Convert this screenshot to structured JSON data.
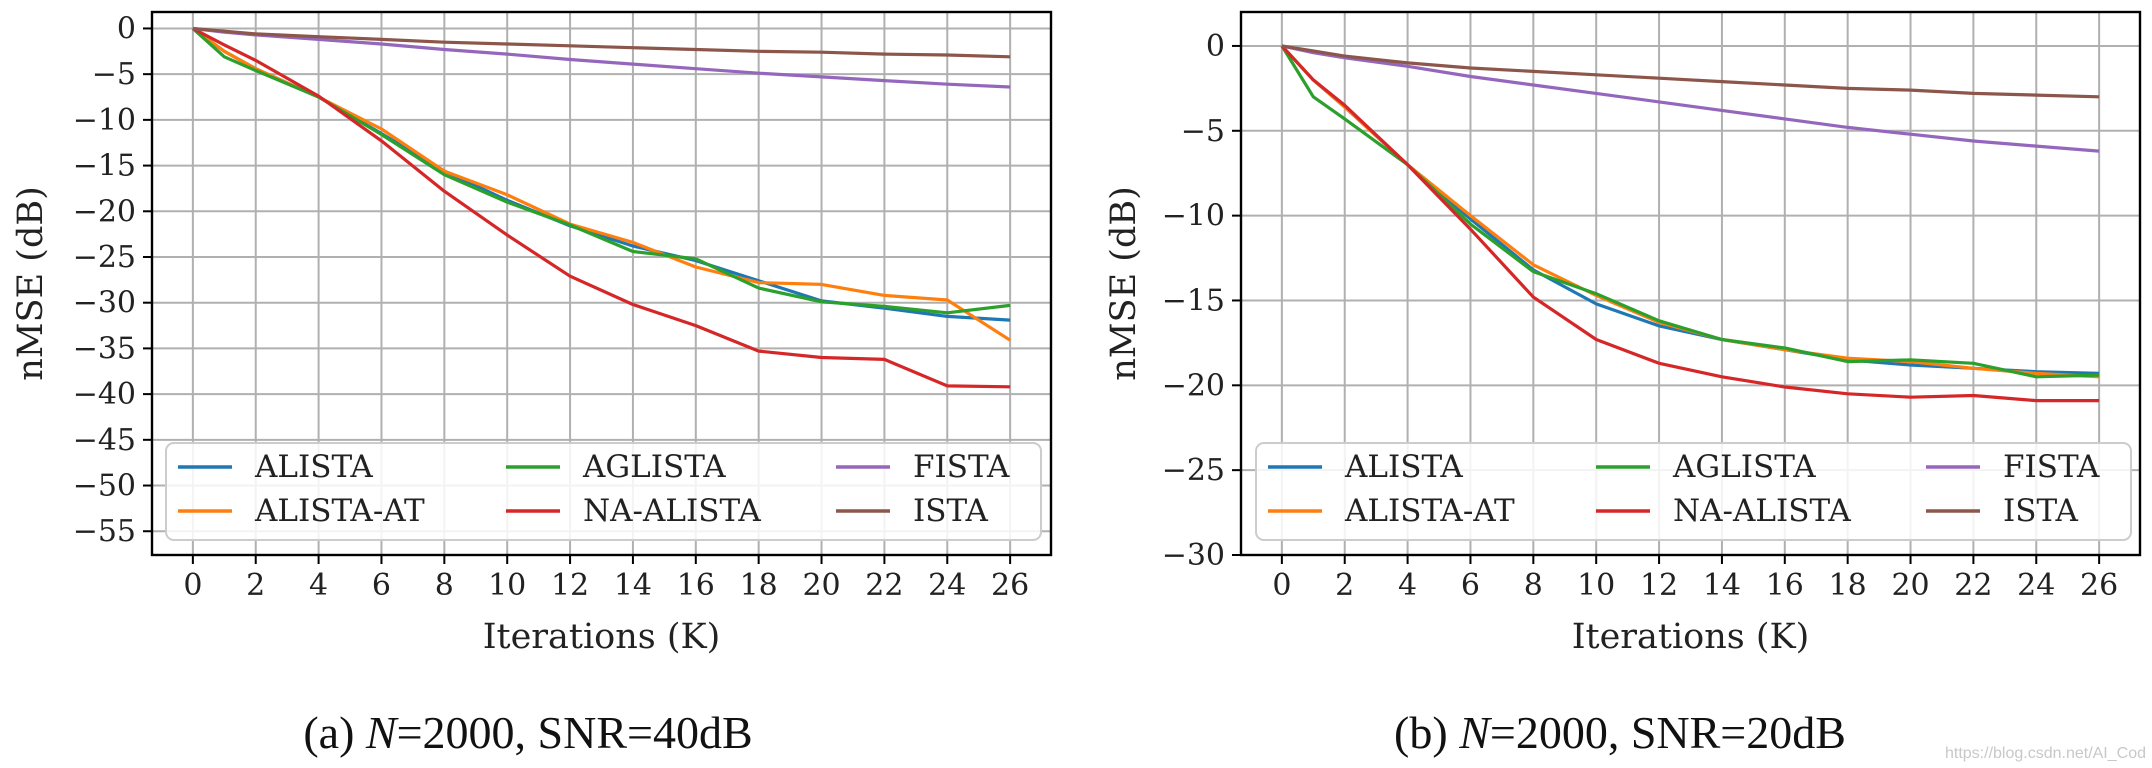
{
  "chart_data": [
    {
      "type": "line",
      "caption_prefix": "(a) ",
      "caption_var": "N",
      "caption_rest": "=2000, SNR=40dB",
      "xlabel": "Iterations (K)",
      "ylabel": "nMSE (dB)",
      "xlim": [
        -1.3,
        27.3
      ],
      "ylim": [
        -57.6,
        1.8
      ],
      "xticks": [
        0,
        2,
        4,
        6,
        8,
        10,
        12,
        14,
        16,
        18,
        20,
        22,
        24,
        26
      ],
      "yticks": [
        0,
        -5,
        -10,
        -15,
        -20,
        -25,
        -30,
        -35,
        -40,
        -45,
        -50,
        -55
      ],
      "grid": true,
      "legend": {
        "position": "lower-center",
        "columns": 3
      },
      "x": [
        0,
        1,
        2,
        4,
        6,
        8,
        10,
        12,
        14,
        16,
        18,
        20,
        22,
        24,
        26
      ],
      "series": [
        {
          "name": "ALISTA",
          "color": "#1f77b4",
          "values": [
            0,
            -2.5,
            -4.4,
            -7.5,
            -11.5,
            -15.6,
            -18.8,
            -21.6,
            -23.8,
            -25.4,
            -27.6,
            -29.8,
            -30.6,
            -31.5,
            -31.9
          ]
        },
        {
          "name": "ALISTA-AT",
          "color": "#ff7f0e",
          "values": [
            0,
            -2.5,
            -4.4,
            -7.5,
            -11.0,
            -15.6,
            -18.2,
            -21.4,
            -23.4,
            -26.1,
            -27.8,
            -28.0,
            -29.2,
            -29.7,
            -34.1
          ]
        },
        {
          "name": "AGLISTA",
          "color": "#2ca02c",
          "values": [
            0,
            -3.1,
            -4.6,
            -7.5,
            -11.6,
            -16.0,
            -19.0,
            -21.5,
            -24.4,
            -25.2,
            -28.4,
            -29.9,
            -30.4,
            -31.1,
            -30.3
          ]
        },
        {
          "name": "NA-ALISTA",
          "color": "#d62728",
          "values": [
            0,
            -1.8,
            -3.5,
            -7.4,
            -12.3,
            -17.8,
            -22.6,
            -27.1,
            -30.2,
            -32.5,
            -35.3,
            -36.0,
            -36.2,
            -39.1,
            -39.2
          ]
        },
        {
          "name": "FISTA",
          "color": "#9467bd",
          "values": [
            0,
            -0.4,
            -0.7,
            -1.2,
            -1.7,
            -2.3,
            -2.8,
            -3.4,
            -3.9,
            -4.4,
            -4.9,
            -5.3,
            -5.7,
            -6.1,
            -6.4
          ]
        },
        {
          "name": "ISTA",
          "color": "#8c564b",
          "values": [
            0,
            -0.3,
            -0.6,
            -0.9,
            -1.2,
            -1.5,
            -1.7,
            -1.9,
            -2.1,
            -2.3,
            -2.5,
            -2.6,
            -2.8,
            -2.9,
            -3.1
          ]
        }
      ]
    },
    {
      "type": "line",
      "caption_prefix": "(b) ",
      "caption_var": "N",
      "caption_rest": "=2000, SNR=20dB",
      "xlabel": "Iterations (K)",
      "ylabel": "nMSE (dB)",
      "xlim": [
        -1.3,
        27.3
      ],
      "ylim": [
        -30,
        2
      ],
      "xticks": [
        0,
        2,
        4,
        6,
        8,
        10,
        12,
        14,
        16,
        18,
        20,
        22,
        24,
        26
      ],
      "yticks": [
        0,
        -5,
        -10,
        -15,
        -20,
        -25,
        -30
      ],
      "grid": true,
      "legend": {
        "position": "lower-center",
        "columns": 3
      },
      "x": [
        0,
        1,
        2,
        4,
        6,
        8,
        10,
        12,
        14,
        16,
        18,
        20,
        22,
        24,
        26
      ],
      "series": [
        {
          "name": "ALISTA",
          "color": "#1f77b4",
          "values": [
            0,
            -2.0,
            -3.6,
            -7.0,
            -10.2,
            -13.2,
            -15.2,
            -16.5,
            -17.3,
            -17.9,
            -18.5,
            -18.8,
            -19.0,
            -19.2,
            -19.3
          ]
        },
        {
          "name": "ALISTA-AT",
          "color": "#ff7f0e",
          "values": [
            0,
            -2.0,
            -3.6,
            -7.0,
            -10.0,
            -12.9,
            -14.7,
            -16.3,
            -17.3,
            -17.9,
            -18.4,
            -18.6,
            -19.0,
            -19.3,
            -19.5
          ]
        },
        {
          "name": "AGLISTA",
          "color": "#2ca02c",
          "values": [
            0,
            -3.0,
            -4.3,
            -7.0,
            -10.5,
            -13.3,
            -14.6,
            -16.2,
            -17.3,
            -17.8,
            -18.6,
            -18.5,
            -18.7,
            -19.5,
            -19.4
          ]
        },
        {
          "name": "NA-ALISTA",
          "color": "#d62728",
          "values": [
            0,
            -2.0,
            -3.5,
            -7.0,
            -10.8,
            -14.8,
            -17.3,
            -18.7,
            -19.5,
            -20.1,
            -20.5,
            -20.7,
            -20.6,
            -20.9,
            -20.9
          ]
        },
        {
          "name": "FISTA",
          "color": "#9467bd",
          "values": [
            0,
            -0.4,
            -0.7,
            -1.2,
            -1.8,
            -2.3,
            -2.8,
            -3.3,
            -3.8,
            -4.3,
            -4.8,
            -5.2,
            -5.6,
            -5.9,
            -6.2
          ]
        },
        {
          "name": "ISTA",
          "color": "#8c564b",
          "values": [
            0,
            -0.3,
            -0.6,
            -1.0,
            -1.3,
            -1.5,
            -1.7,
            -1.9,
            -2.1,
            -2.3,
            -2.5,
            -2.6,
            -2.8,
            -2.9,
            -3.0
          ]
        }
      ]
    }
  ],
  "watermark": "https://blog.csdn.net/AI_Cod"
}
